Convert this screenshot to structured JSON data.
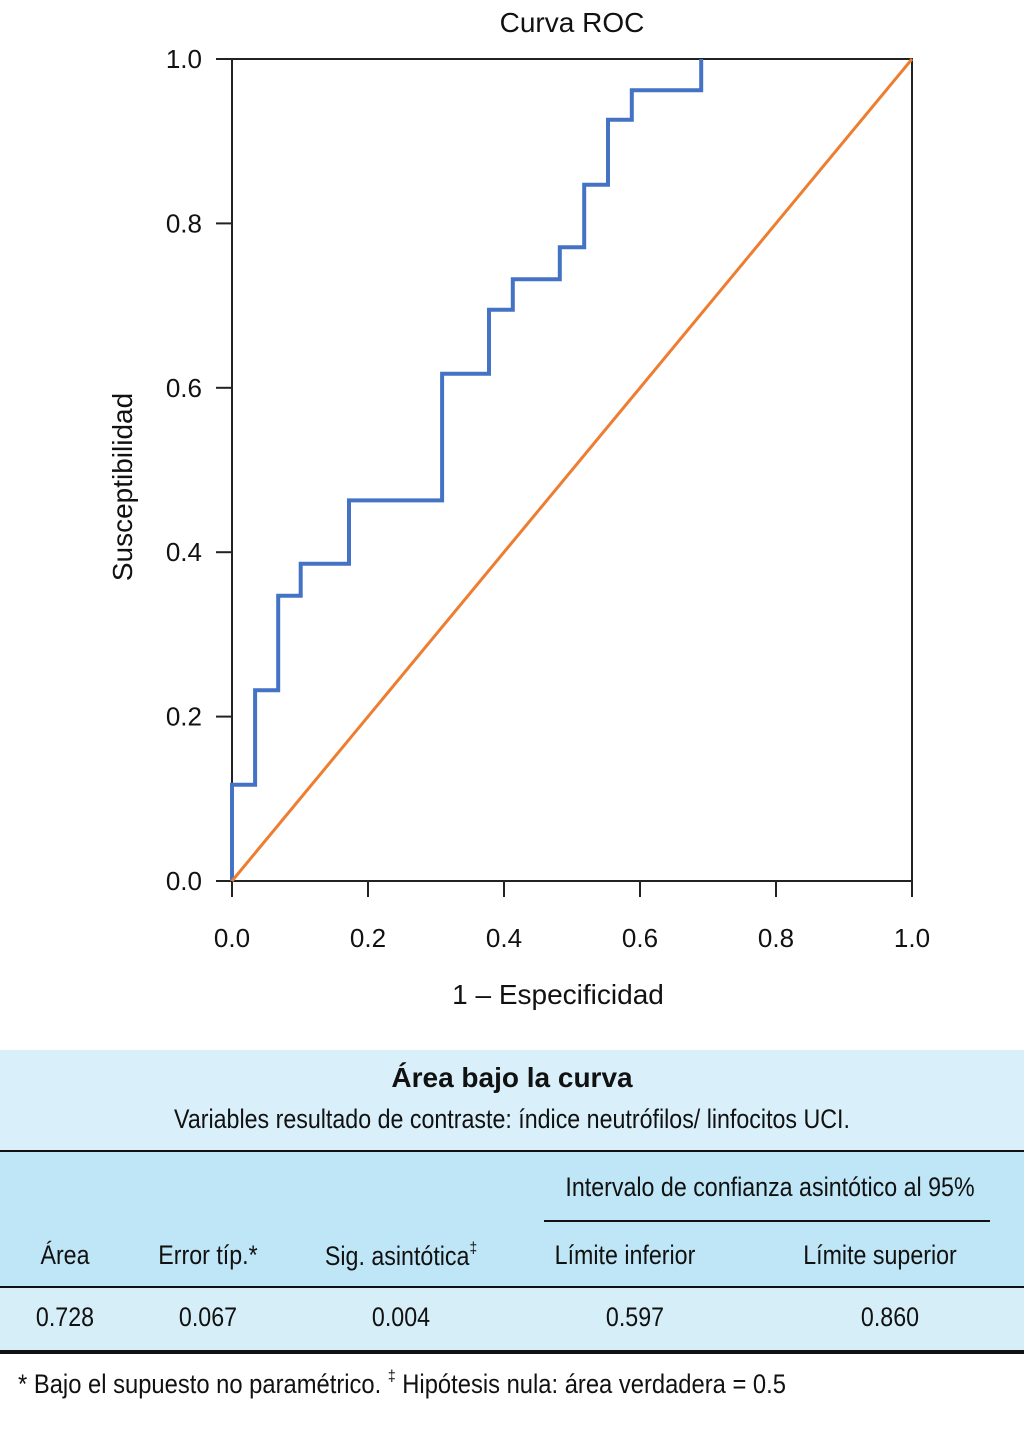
{
  "chart_data": {
    "type": "line",
    "title": "Curva ROC",
    "xlabel": "1 – Especificidad",
    "ylabel": "Susceptibilidad",
    "xlim": [
      0.0,
      1.0
    ],
    "ylim": [
      0.0,
      1.0
    ],
    "xticks": [
      "0.0",
      "0.2",
      "0.4",
      "0.6",
      "0.8",
      "1.0"
    ],
    "yticks": [
      "0.0",
      "0.2",
      "0.4",
      "0.6",
      "0.8",
      "1.0"
    ],
    "grid": false,
    "series": [
      {
        "name": "ROC",
        "color": "#4472c4",
        "style": "step",
        "x": [
          0.0,
          0.0,
          0.034,
          0.034,
          0.068,
          0.068,
          0.101,
          0.101,
          0.172,
          0.172,
          0.309,
          0.309,
          0.378,
          0.378,
          0.413,
          0.413,
          0.482,
          0.482,
          0.518,
          0.518,
          0.553,
          0.553,
          0.588,
          0.588,
          0.69,
          0.69
        ],
        "y": [
          0.0,
          0.117,
          0.117,
          0.232,
          0.232,
          0.347,
          0.347,
          0.386,
          0.386,
          0.463,
          0.463,
          0.617,
          0.617,
          0.695,
          0.695,
          0.732,
          0.732,
          0.771,
          0.771,
          0.847,
          0.847,
          0.926,
          0.926,
          0.962,
          0.962,
          1.0
        ]
      },
      {
        "name": "Reference line",
        "color": "#ed7d31",
        "style": "line",
        "x": [
          0.0,
          1.0
        ],
        "y": [
          0.0,
          1.0
        ]
      }
    ]
  },
  "table": {
    "title": "Área bajo la curva",
    "subtitle": "Variables resultado de contraste: índice neutrófilos/ linfocitos UCI.",
    "group_header": "Intervalo de confianza asintótico al 95%",
    "columns": [
      "Área",
      "Error típ.",
      "Sig. asintótica",
      "Límite inferior",
      "Límite superior"
    ],
    "column_marks": [
      "",
      "*",
      "‡",
      "",
      ""
    ],
    "rows": [
      [
        "0.728",
        "0.067",
        "0.004",
        "0.597",
        "0.860"
      ]
    ]
  },
  "footnote": {
    "star": "* Bajo el supuesto no paramétrico. ",
    "dagger_mark": "‡",
    "dagger": " Hipótesis nula: área verdadera = 0.5"
  }
}
